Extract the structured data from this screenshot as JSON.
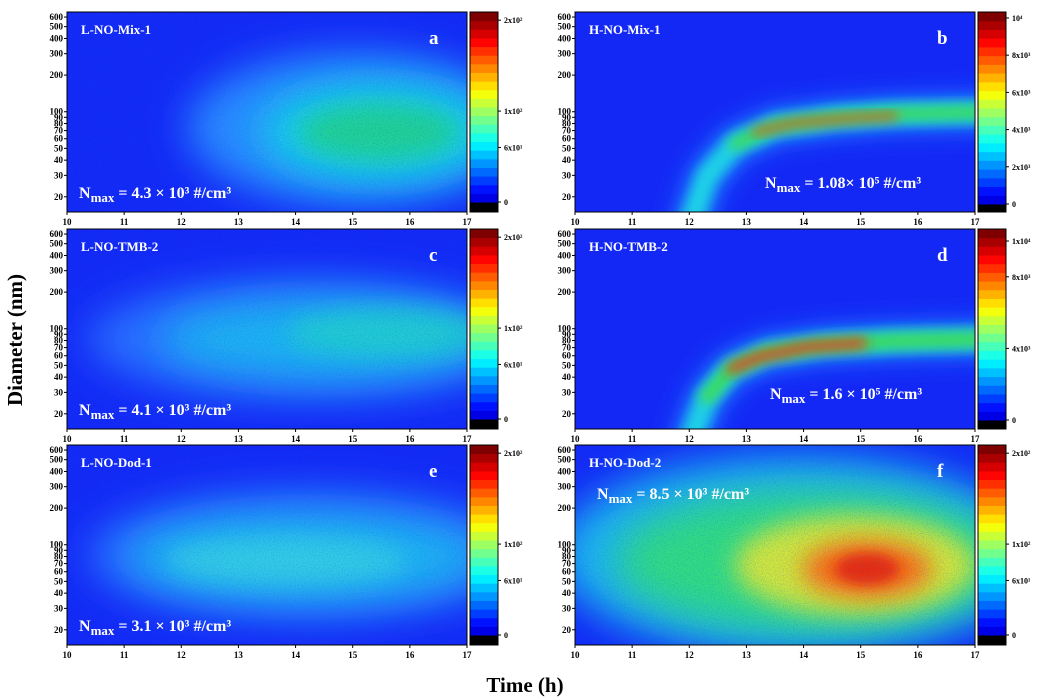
{
  "figure": {
    "x_label": "Time (h)",
    "y_label": "Diameter (nm)"
  },
  "chart_data": [
    {
      "type": "heatmap",
      "title": "L-NO-Mix-1",
      "panel": "a",
      "annotation": {
        "symbol": "N",
        "subscript": "max",
        "text": "= 4.3 × 10³ #/cm³"
      },
      "xlim": [
        10,
        17
      ],
      "xticks": [
        10,
        11,
        12,
        13,
        14,
        15,
        16,
        17
      ],
      "ylim": [
        15,
        660
      ],
      "log_y": true,
      "yticks": [
        20,
        30,
        40,
        50,
        60,
        70,
        80,
        90,
        100,
        200,
        300,
        400,
        500,
        600
      ],
      "colorbar": {
        "lim": [
          -11,
          209
        ],
        "ticks": [
          {
            "value": 200,
            "label": "2x10²"
          },
          {
            "value": 100,
            "label": "1x10²"
          },
          {
            "value": 60,
            "label": "6x10¹"
          },
          0
        ]
      }
    },
    {
      "type": "heatmap",
      "title": "H-NO-Mix-1",
      "panel": "b",
      "annotation": {
        "symbol": "N",
        "subscript": "max",
        "text": "= 1.08× 10⁵ #/cm³"
      },
      "xlim": [
        10,
        17
      ],
      "xticks": [
        10,
        11,
        12,
        13,
        14,
        15,
        16,
        17
      ],
      "ylim": [
        15,
        660
      ],
      "log_y": true,
      "yticks": [
        20,
        30,
        40,
        50,
        60,
        70,
        80,
        90,
        100,
        200,
        300,
        400,
        500,
        600
      ],
      "colorbar": {
        "lim": [
          -430,
          10320
        ],
        "ticks": [
          {
            "value": 10000,
            "label": "10⁴"
          },
          {
            "value": 8000,
            "label": "8x10³"
          },
          {
            "value": 6000,
            "label": "6x10³"
          },
          {
            "value": 4000,
            "label": "4x10³"
          },
          {
            "value": 2000,
            "label": "2x10³"
          },
          0
        ]
      }
    },
    {
      "type": "heatmap",
      "title": "L-NO-TMB-2",
      "panel": "c",
      "annotation": {
        "symbol": "N",
        "subscript": "max",
        "text": "= 4.1 × 10³ #/cm³"
      },
      "xlim": [
        10,
        17
      ],
      "xticks": [
        10,
        11,
        12,
        13,
        14,
        15,
        16,
        17
      ],
      "ylim": [
        15,
        660
      ],
      "log_y": true,
      "yticks": [
        20,
        30,
        40,
        50,
        60,
        70,
        80,
        90,
        100,
        200,
        300,
        400,
        500,
        600
      ],
      "colorbar": {
        "lim": [
          -11,
          209
        ],
        "ticks": [
          {
            "value": 200,
            "label": "2x10²"
          },
          {
            "value": 100,
            "label": "1x10²"
          },
          {
            "value": 60,
            "label": "6x10¹"
          },
          0
        ]
      }
    },
    {
      "type": "heatmap",
      "title": "H-NO-TMB-2",
      "panel": "d",
      "annotation": {
        "symbol": "N",
        "subscript": "max",
        "text": "= 1.6 × 10⁵ #/cm³"
      },
      "xlim": [
        10,
        17
      ],
      "xticks": [
        10,
        11,
        12,
        13,
        14,
        15,
        16,
        17
      ],
      "ylim": [
        15,
        660
      ],
      "log_y": true,
      "yticks": [
        20,
        30,
        40,
        50,
        60,
        70,
        80,
        90,
        100,
        200,
        300,
        400,
        500,
        600
      ],
      "colorbar": {
        "lim": [
          -503,
          10670
        ],
        "ticks": [
          {
            "value": 10000,
            "label": "1x10⁴"
          },
          {
            "value": 8000,
            "label": "8x10³"
          },
          {
            "value": 4000,
            "label": "4x10³"
          },
          0
        ]
      }
    },
    {
      "type": "heatmap",
      "title": "L-NO-Dod-1",
      "panel": "e",
      "annotation": {
        "symbol": "N",
        "subscript": "max",
        "text": "= 3.1 × 10³ #/cm³"
      },
      "xlim": [
        10,
        17
      ],
      "xticks": [
        10,
        11,
        12,
        13,
        14,
        15,
        16,
        17
      ],
      "ylim": [
        15,
        660
      ],
      "log_y": true,
      "yticks": [
        20,
        30,
        40,
        50,
        60,
        70,
        80,
        90,
        100,
        200,
        300,
        400,
        500,
        600
      ],
      "colorbar": {
        "lim": [
          -11,
          209
        ],
        "ticks": [
          {
            "value": 200,
            "label": "2x10²"
          },
          {
            "value": 100,
            "label": "1x10²"
          },
          {
            "value": 60,
            "label": "6x10¹"
          },
          0
        ]
      }
    },
    {
      "type": "heatmap",
      "title": "H-NO-Dod-2",
      "panel": "f",
      "annotation": {
        "symbol": "N",
        "subscript": "max",
        "text": "= 8.5 × 10³ #/cm³"
      },
      "xlim": [
        10,
        17
      ],
      "xticks": [
        10,
        11,
        12,
        13,
        14,
        15,
        16,
        17
      ],
      "ylim": [
        15,
        660
      ],
      "log_y": true,
      "yticks": [
        20,
        30,
        40,
        50,
        60,
        70,
        80,
        90,
        100,
        200,
        300,
        400,
        500,
        600
      ],
      "colorbar": {
        "lim": [
          -11,
          209
        ],
        "ticks": [
          {
            "value": 200,
            "label": "2x10²"
          },
          {
            "value": 100,
            "label": "1x10²"
          },
          {
            "value": 60,
            "label": "6x10¹"
          },
          0
        ]
      }
    }
  ]
}
